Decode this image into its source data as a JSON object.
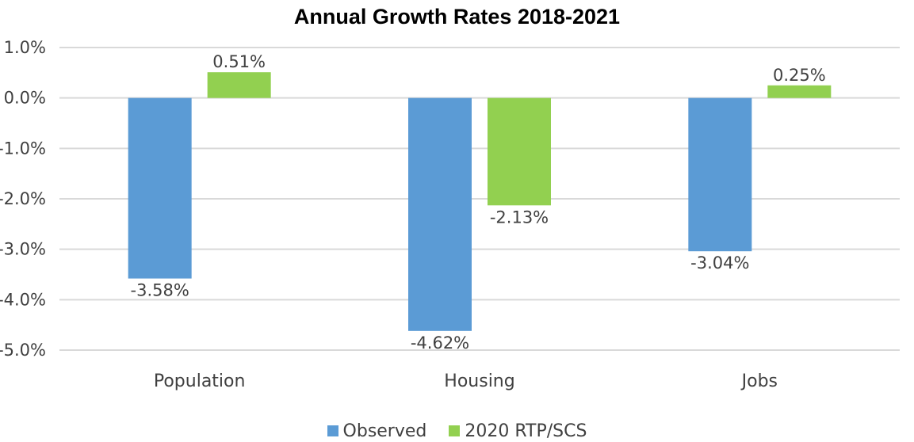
{
  "chart_data": {
    "type": "bar",
    "title": "Annual Growth Rates 2018-2021",
    "categories": [
      "Population",
      "Housing",
      "Jobs"
    ],
    "series": [
      {
        "name": "Observed",
        "values": [
          -3.58,
          -4.62,
          -3.04
        ],
        "labels": [
          "-3.58%",
          "-4.62%",
          "-3.04%"
        ],
        "color": "#5B9BD5"
      },
      {
        "name": "2020 RTP/SCS",
        "values": [
          0.51,
          -2.13,
          0.25
        ],
        "labels": [
          "0.51%",
          "-2.13%",
          "0.25%"
        ],
        "color": "#92D050"
      }
    ],
    "ylim": [
      -5.0,
      1.0
    ],
    "yticks": [
      1.0,
      0.0,
      -1.0,
      -2.0,
      -3.0,
      -4.0,
      -5.0
    ],
    "ytick_labels": [
      "1.0%",
      "0.0%",
      "-1.0%",
      "-2.0%",
      "-3.0%",
      "-4.0%",
      "-5.0%"
    ],
    "grid": true,
    "legend_position": "bottom"
  }
}
